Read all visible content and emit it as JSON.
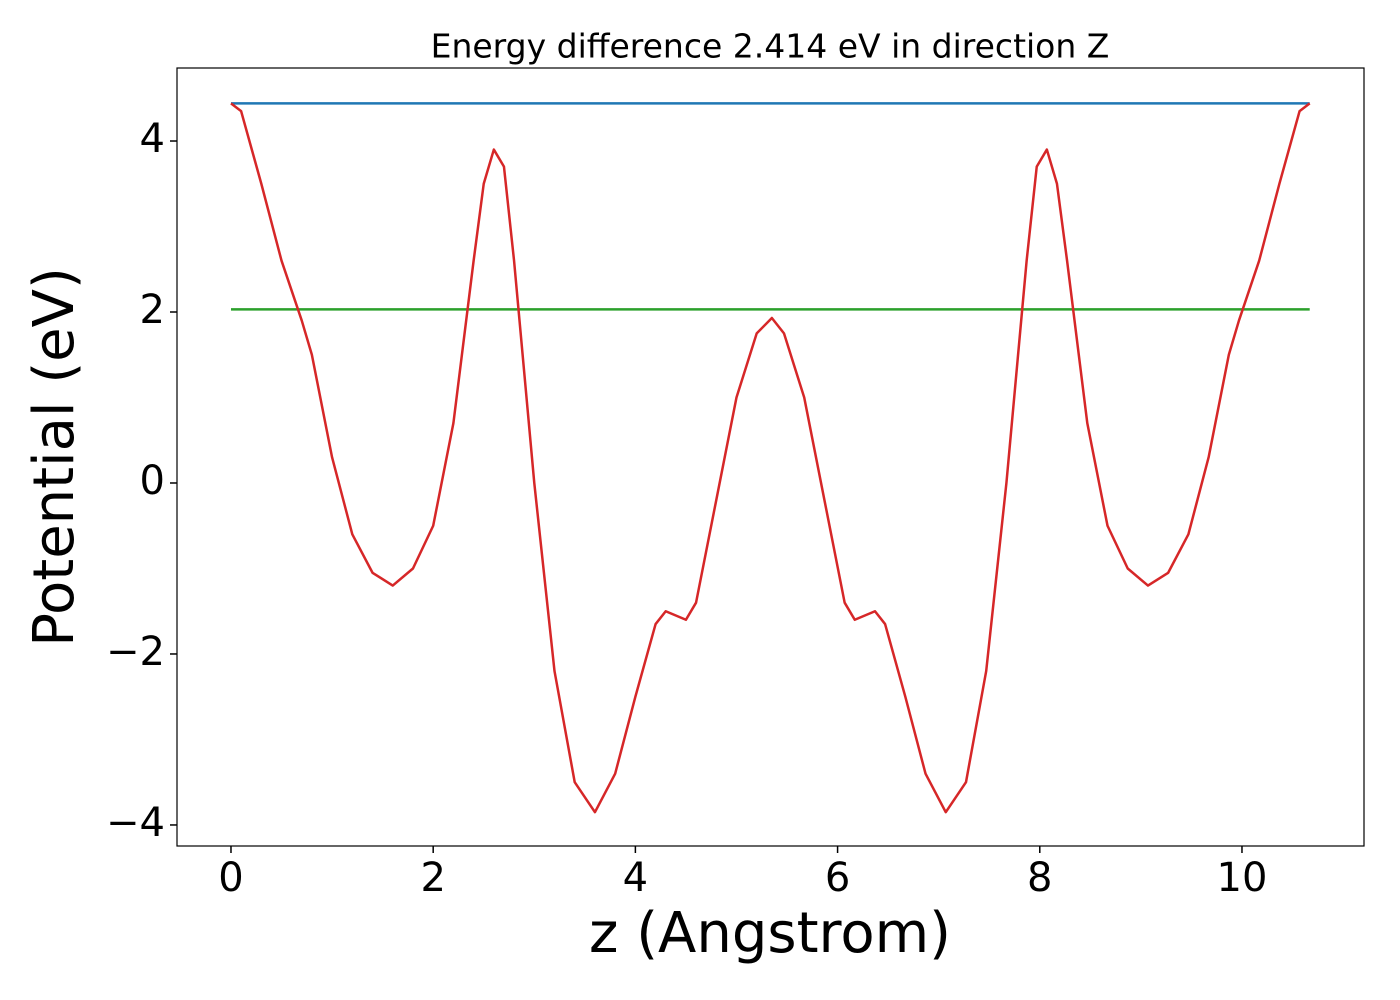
{
  "chart_data": {
    "type": "line",
    "title": "Energy difference 2.414 eV in direction Z",
    "x_label": "z (Angstrom)",
    "y_label": "Potential (eV)",
    "xlim": [
      -0.534,
      11.207
    ],
    "ylim": [
      -4.246,
      4.854
    ],
    "xticks": [
      0,
      2,
      4,
      6,
      8,
      10
    ],
    "yticks": [
      {
        "value": -4,
        "label": "−4"
      },
      {
        "value": -2,
        "label": "−2"
      },
      0,
      2,
      4
    ],
    "series": [
      {
        "color": "#1f77b4",
        "x": [
          0,
          10.67
        ],
        "values": [
          4.44,
          4.44
        ]
      },
      {
        "color": "#2ca02c",
        "x": [
          0,
          10.67
        ],
        "values": [
          2.03,
          2.03
        ]
      },
      {
        "color": "#d62728",
        "x": [
          0,
          0.1,
          0.3,
          0.5,
          0.7,
          0.8,
          1.0,
          1.2,
          1.4,
          1.6,
          1.8,
          2.0,
          2.2,
          2.4,
          2.5,
          2.6,
          2.7,
          2.8,
          3.0,
          3.2,
          3.4,
          3.6,
          3.8,
          4.0,
          4.2,
          4.3,
          4.5,
          4.6,
          4.8,
          5.0,
          5.2,
          5.35,
          5.47,
          5.67,
          5.87,
          6.07,
          6.17,
          6.37,
          6.47,
          6.67,
          6.87,
          7.07,
          7.27,
          7.47,
          7.67,
          7.87,
          7.97,
          8.07,
          8.17,
          8.27,
          8.47,
          8.67,
          8.87,
          9.07,
          9.27,
          9.47,
          9.67,
          9.87,
          9.97,
          10.17,
          10.37,
          10.57,
          10.67
        ],
        "values": [
          4.44,
          4.35,
          3.5,
          2.6,
          1.9,
          1.5,
          0.3,
          -0.6,
          -1.05,
          -1.2,
          -1.0,
          -0.5,
          0.7,
          2.6,
          3.5,
          3.9,
          3.7,
          2.6,
          0.0,
          -2.2,
          -3.5,
          -3.85,
          -3.4,
          -2.5,
          -1.65,
          -1.5,
          -1.6,
          -1.4,
          -0.2,
          1.0,
          1.75,
          1.93,
          1.75,
          1.0,
          -0.2,
          -1.4,
          -1.6,
          -1.5,
          -1.65,
          -2.5,
          -3.4,
          -3.85,
          -3.5,
          -2.2,
          0.0,
          2.6,
          3.7,
          3.9,
          3.5,
          2.6,
          0.7,
          -0.5,
          -1.0,
          -1.2,
          -1.05,
          -0.6,
          0.3,
          1.5,
          1.9,
          2.6,
          3.5,
          4.35,
          4.44
        ]
      }
    ]
  }
}
